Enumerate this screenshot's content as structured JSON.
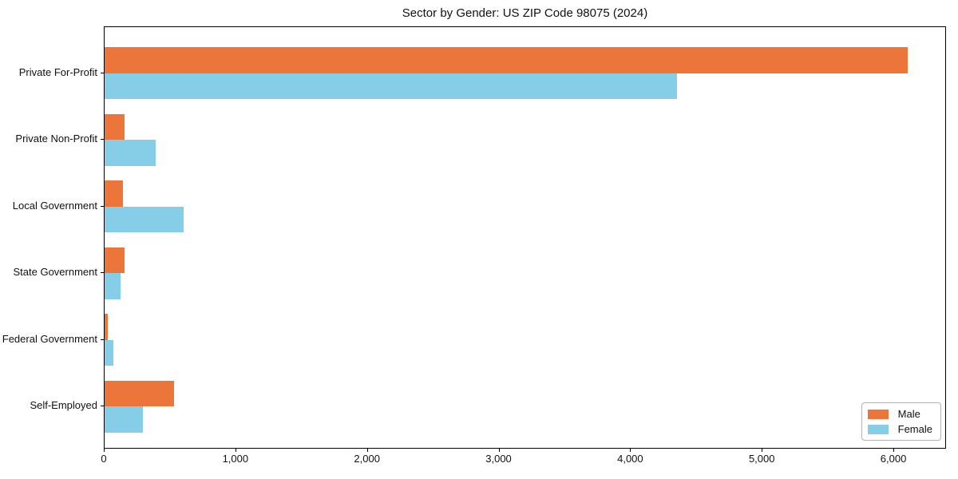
{
  "title": "Sector by Gender: US ZIP Code 98075 (2024)",
  "chart_data": {
    "type": "bar",
    "orientation": "horizontal",
    "title": "Sector by Gender: US ZIP Code 98075 (2024)",
    "categories": [
      "Private For-Profit",
      "Private Non-Profit",
      "Local Government",
      "State Government",
      "Federal Government",
      "Self-Employed"
    ],
    "series": [
      {
        "name": "Male",
        "color": "#EC7639",
        "values": [
          6100,
          150,
          140,
          150,
          25,
          530
        ]
      },
      {
        "name": "Female",
        "color": "#86CDE8",
        "values": [
          4350,
          385,
          600,
          120,
          65,
          290
        ]
      }
    ],
    "xlabel": "",
    "ylabel": "",
    "xlim": [
      0,
      6400
    ],
    "x_ticks": [
      0,
      1000,
      2000,
      3000,
      4000,
      5000,
      6000
    ],
    "x_tick_labels": [
      "0",
      "1,000",
      "2,000",
      "3,000",
      "4,000",
      "5,000",
      "6,000"
    ],
    "grid": false,
    "legend_position": "lower right"
  }
}
